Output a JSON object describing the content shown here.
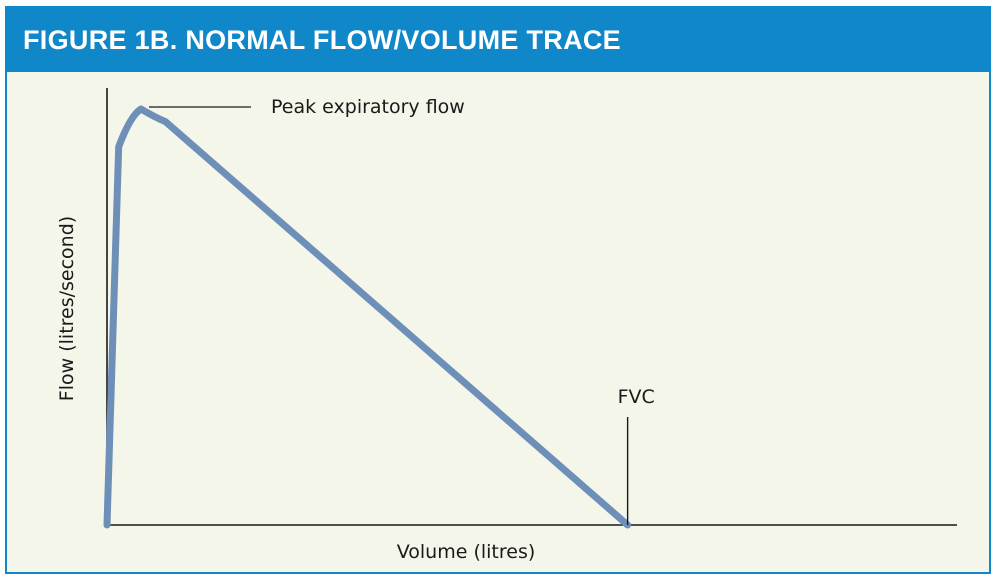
{
  "figure": {
    "title": "FIGURE 1B. NORMAL FLOW/VOLUME TRACE"
  },
  "colors": {
    "header": "#0f87c8",
    "panel_background": "#f4f6ea",
    "trace": "#6d8fb8",
    "axis": "#1a1a1a"
  },
  "chart_data": {
    "type": "line",
    "title": "FIGURE 1B. NORMAL FLOW/VOLUME TRACE",
    "xlabel": "Volume (litres)",
    "ylabel": "Flow (litres/second)",
    "x_ticks_shown": false,
    "y_ticks_shown": false,
    "grid": false,
    "legend": "none",
    "series": [
      {
        "name": "",
        "points": [
          {
            "x": 0,
            "y": 0
          },
          {
            "x": 0.11,
            "y": 9.0
          },
          {
            "x": 0.22,
            "y": 9.6
          },
          {
            "x": 0.32,
            "y": 9.9
          },
          {
            "x": 0.55,
            "y": 9.6
          },
          {
            "x": 4.9,
            "y": 0
          }
        ]
      }
    ],
    "xlim": [
      0,
      8
    ],
    "ylim": [
      0,
      10.4
    ],
    "annotations": [
      {
        "text": "Peak expiratory flow",
        "x": 0.32,
        "y": 9.9
      },
      {
        "text": "FVC",
        "x": 4.9,
        "y": 0
      }
    ]
  }
}
